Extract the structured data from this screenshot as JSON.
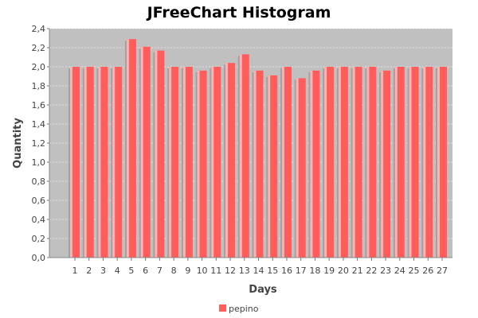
{
  "chart_data": {
    "type": "bar",
    "title": "JFreeChart Histogram",
    "xlabel": "Days",
    "ylabel": "Quantity",
    "ylim": [
      0,
      2.4
    ],
    "ytick_step": 0.2,
    "decimal_separator": ",",
    "grid": true,
    "legend_position": "bottom-left",
    "colors": {
      "bar": "#ff5c5c",
      "bar_highlight": "#ffb3b3",
      "bar_shadow": "#9a9a9a",
      "plot_background": "#c0c0c0",
      "gridline": "#ffffff"
    },
    "categories": [
      "1",
      "2",
      "3",
      "4",
      "5",
      "6",
      "7",
      "8",
      "9",
      "10",
      "11",
      "12",
      "13",
      "14",
      "15",
      "16",
      "17",
      "18",
      "19",
      "20",
      "21",
      "22",
      "23",
      "24",
      "25",
      "26",
      "27"
    ],
    "series": [
      {
        "name": "pepino",
        "values": [
          2.0,
          2.0,
          2.0,
          2.0,
          2.29,
          2.21,
          2.17,
          2.0,
          2.0,
          1.96,
          2.0,
          2.04,
          2.13,
          1.96,
          1.91,
          2.0,
          1.88,
          1.96,
          2.0,
          2.0,
          2.0,
          2.0,
          1.96,
          2.0,
          2.0,
          2.0,
          2.0
        ]
      }
    ]
  }
}
